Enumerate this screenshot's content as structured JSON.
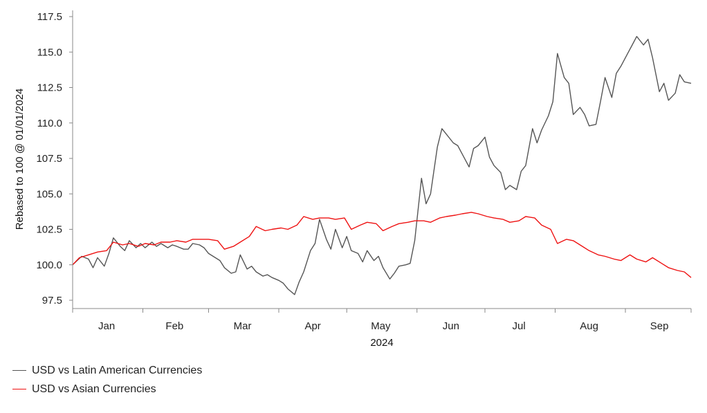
{
  "chart_data": {
    "type": "line",
    "title": "",
    "xlabel": "2024",
    "ylabel": "Rebased to 100 @ 01/01/2024",
    "ylim": [
      97.5,
      117.5
    ],
    "yticks": [
      "97.5",
      "100.0",
      "102.5",
      "105.0",
      "107.5",
      "110.0",
      "112.5",
      "115.0",
      "117.5"
    ],
    "xticks": [
      "Jan",
      "Feb",
      "Mar",
      "Apr",
      "May",
      "Jun",
      "Jul",
      "Aug",
      "Sep"
    ],
    "xlim": [
      "2024-01-01",
      "2024-09-30"
    ],
    "grid": false,
    "legend": "bottom-left",
    "series": [
      {
        "name": "USD vs Latin American Currencies",
        "color": "#555555",
        "points": [
          [
            "2024-01-01",
            100.0
          ],
          [
            "2024-01-03",
            100.3
          ],
          [
            "2024-01-05",
            100.6
          ],
          [
            "2024-01-08",
            100.4
          ],
          [
            "2024-01-10",
            99.8
          ],
          [
            "2024-01-12",
            100.5
          ],
          [
            "2024-01-15",
            99.9
          ],
          [
            "2024-01-17",
            100.8
          ],
          [
            "2024-01-19",
            101.9
          ],
          [
            "2024-01-22",
            101.3
          ],
          [
            "2024-01-24",
            101.0
          ],
          [
            "2024-01-26",
            101.7
          ],
          [
            "2024-01-29",
            101.2
          ],
          [
            "2024-01-31",
            101.5
          ],
          [
            "2024-02-02",
            101.2
          ],
          [
            "2024-02-05",
            101.6
          ],
          [
            "2024-02-07",
            101.3
          ],
          [
            "2024-02-09",
            101.5
          ],
          [
            "2024-02-12",
            101.2
          ],
          [
            "2024-02-14",
            101.4
          ],
          [
            "2024-02-16",
            101.3
          ],
          [
            "2024-02-19",
            101.1
          ],
          [
            "2024-02-21",
            101.1
          ],
          [
            "2024-02-23",
            101.5
          ],
          [
            "2024-02-26",
            101.4
          ],
          [
            "2024-02-28",
            101.2
          ],
          [
            "2024-03-01",
            100.8
          ],
          [
            "2024-03-04",
            100.5
          ],
          [
            "2024-03-06",
            100.3
          ],
          [
            "2024-03-08",
            99.8
          ],
          [
            "2024-03-11",
            99.4
          ],
          [
            "2024-03-13",
            99.5
          ],
          [
            "2024-03-15",
            100.7
          ],
          [
            "2024-03-18",
            99.7
          ],
          [
            "2024-03-20",
            99.9
          ],
          [
            "2024-03-22",
            99.5
          ],
          [
            "2024-03-25",
            99.2
          ],
          [
            "2024-03-27",
            99.3
          ],
          [
            "2024-03-29",
            99.1
          ],
          [
            "2024-04-01",
            98.9
          ],
          [
            "2024-04-03",
            98.7
          ],
          [
            "2024-04-05",
            98.3
          ],
          [
            "2024-04-08",
            97.9
          ],
          [
            "2024-04-10",
            98.8
          ],
          [
            "2024-04-12",
            99.5
          ],
          [
            "2024-04-15",
            101.0
          ],
          [
            "2024-04-17",
            101.5
          ],
          [
            "2024-04-19",
            103.2
          ],
          [
            "2024-04-22",
            101.8
          ],
          [
            "2024-04-24",
            101.1
          ],
          [
            "2024-04-26",
            102.5
          ],
          [
            "2024-04-29",
            101.2
          ],
          [
            "2024-05-01",
            102.0
          ],
          [
            "2024-05-03",
            101.0
          ],
          [
            "2024-05-06",
            100.8
          ],
          [
            "2024-05-08",
            100.2
          ],
          [
            "2024-05-10",
            101.0
          ],
          [
            "2024-05-13",
            100.3
          ],
          [
            "2024-05-15",
            100.6
          ],
          [
            "2024-05-17",
            99.8
          ],
          [
            "2024-05-20",
            99.0
          ],
          [
            "2024-05-22",
            99.4
          ],
          [
            "2024-05-24",
            99.9
          ],
          [
            "2024-05-27",
            100.0
          ],
          [
            "2024-05-29",
            100.1
          ],
          [
            "2024-05-31",
            101.7
          ],
          [
            "2024-06-03",
            106.1
          ],
          [
            "2024-06-05",
            104.3
          ],
          [
            "2024-06-07",
            105.0
          ],
          [
            "2024-06-10",
            108.3
          ],
          [
            "2024-06-12",
            109.6
          ],
          [
            "2024-06-14",
            109.2
          ],
          [
            "2024-06-17",
            108.6
          ],
          [
            "2024-06-19",
            108.4
          ],
          [
            "2024-06-21",
            107.8
          ],
          [
            "2024-06-24",
            106.9
          ],
          [
            "2024-06-26",
            108.2
          ],
          [
            "2024-06-28",
            108.4
          ],
          [
            "2024-07-01",
            109.0
          ],
          [
            "2024-07-03",
            107.6
          ],
          [
            "2024-07-05",
            107.0
          ],
          [
            "2024-07-08",
            106.5
          ],
          [
            "2024-07-10",
            105.3
          ],
          [
            "2024-07-12",
            105.6
          ],
          [
            "2024-07-15",
            105.3
          ],
          [
            "2024-07-17",
            106.6
          ],
          [
            "2024-07-19",
            107.0
          ],
          [
            "2024-07-22",
            109.6
          ],
          [
            "2024-07-24",
            108.6
          ],
          [
            "2024-07-26",
            109.5
          ],
          [
            "2024-07-29",
            110.5
          ],
          [
            "2024-07-31",
            111.5
          ],
          [
            "2024-08-02",
            114.9
          ],
          [
            "2024-08-05",
            113.2
          ],
          [
            "2024-08-07",
            112.8
          ],
          [
            "2024-08-09",
            110.6
          ],
          [
            "2024-08-12",
            111.1
          ],
          [
            "2024-08-14",
            110.6
          ],
          [
            "2024-08-16",
            109.8
          ],
          [
            "2024-08-19",
            109.9
          ],
          [
            "2024-08-21",
            111.5
          ],
          [
            "2024-08-23",
            113.2
          ],
          [
            "2024-08-26",
            111.8
          ],
          [
            "2024-08-28",
            113.5
          ],
          [
            "2024-08-30",
            114.0
          ],
          [
            "2024-09-02",
            114.9
          ],
          [
            "2024-09-04",
            115.5
          ],
          [
            "2024-09-06",
            116.1
          ],
          [
            "2024-09-09",
            115.5
          ],
          [
            "2024-09-11",
            115.9
          ],
          [
            "2024-09-13",
            114.6
          ],
          [
            "2024-09-16",
            112.2
          ],
          [
            "2024-09-18",
            112.8
          ],
          [
            "2024-09-20",
            111.6
          ],
          [
            "2024-09-23",
            112.1
          ],
          [
            "2024-09-25",
            113.4
          ],
          [
            "2024-09-27",
            112.9
          ],
          [
            "2024-09-30",
            112.8
          ]
        ]
      },
      {
        "name": "USD vs Asian Currencies",
        "color": "#ee1111",
        "points": [
          [
            "2024-01-01",
            100.0
          ],
          [
            "2024-01-04",
            100.5
          ],
          [
            "2024-01-08",
            100.7
          ],
          [
            "2024-01-12",
            100.9
          ],
          [
            "2024-01-16",
            101.0
          ],
          [
            "2024-01-19",
            101.6
          ],
          [
            "2024-01-23",
            101.4
          ],
          [
            "2024-01-26",
            101.5
          ],
          [
            "2024-01-30",
            101.3
          ],
          [
            "2024-02-02",
            101.5
          ],
          [
            "2024-02-06",
            101.4
          ],
          [
            "2024-02-09",
            101.6
          ],
          [
            "2024-02-13",
            101.6
          ],
          [
            "2024-02-16",
            101.7
          ],
          [
            "2024-02-20",
            101.6
          ],
          [
            "2024-02-23",
            101.8
          ],
          [
            "2024-02-27",
            101.8
          ],
          [
            "2024-03-01",
            101.8
          ],
          [
            "2024-03-05",
            101.7
          ],
          [
            "2024-03-08",
            101.1
          ],
          [
            "2024-03-12",
            101.3
          ],
          [
            "2024-03-15",
            101.6
          ],
          [
            "2024-03-19",
            102.0
          ],
          [
            "2024-03-22",
            102.7
          ],
          [
            "2024-03-26",
            102.4
          ],
          [
            "2024-03-29",
            102.5
          ],
          [
            "2024-04-02",
            102.6
          ],
          [
            "2024-04-05",
            102.5
          ],
          [
            "2024-04-09",
            102.8
          ],
          [
            "2024-04-12",
            103.4
          ],
          [
            "2024-04-16",
            103.2
          ],
          [
            "2024-04-19",
            103.3
          ],
          [
            "2024-04-23",
            103.3
          ],
          [
            "2024-04-26",
            103.2
          ],
          [
            "2024-04-30",
            103.3
          ],
          [
            "2024-05-03",
            102.5
          ],
          [
            "2024-05-07",
            102.8
          ],
          [
            "2024-05-10",
            103.0
          ],
          [
            "2024-05-14",
            102.9
          ],
          [
            "2024-05-17",
            102.4
          ],
          [
            "2024-05-21",
            102.7
          ],
          [
            "2024-05-24",
            102.9
          ],
          [
            "2024-05-28",
            103.0
          ],
          [
            "2024-05-31",
            103.1
          ],
          [
            "2024-06-04",
            103.1
          ],
          [
            "2024-06-07",
            103.0
          ],
          [
            "2024-06-11",
            103.3
          ],
          [
            "2024-06-14",
            103.4
          ],
          [
            "2024-06-18",
            103.5
          ],
          [
            "2024-06-21",
            103.6
          ],
          [
            "2024-06-25",
            103.7
          ],
          [
            "2024-06-28",
            103.6
          ],
          [
            "2024-07-02",
            103.4
          ],
          [
            "2024-07-05",
            103.3
          ],
          [
            "2024-07-09",
            103.2
          ],
          [
            "2024-07-12",
            103.0
          ],
          [
            "2024-07-16",
            103.1
          ],
          [
            "2024-07-19",
            103.4
          ],
          [
            "2024-07-23",
            103.3
          ],
          [
            "2024-07-26",
            102.8
          ],
          [
            "2024-07-30",
            102.5
          ],
          [
            "2024-08-02",
            101.5
          ],
          [
            "2024-08-06",
            101.8
          ],
          [
            "2024-08-09",
            101.7
          ],
          [
            "2024-08-13",
            101.3
          ],
          [
            "2024-08-16",
            101.0
          ],
          [
            "2024-08-20",
            100.7
          ],
          [
            "2024-08-23",
            100.6
          ],
          [
            "2024-08-27",
            100.4
          ],
          [
            "2024-08-30",
            100.3
          ],
          [
            "2024-09-03",
            100.7
          ],
          [
            "2024-09-06",
            100.4
          ],
          [
            "2024-09-10",
            100.2
          ],
          [
            "2024-09-13",
            100.5
          ],
          [
            "2024-09-17",
            100.1
          ],
          [
            "2024-09-20",
            99.8
          ],
          [
            "2024-09-24",
            99.6
          ],
          [
            "2024-09-27",
            99.5
          ],
          [
            "2024-09-30",
            99.1
          ]
        ]
      }
    ]
  }
}
